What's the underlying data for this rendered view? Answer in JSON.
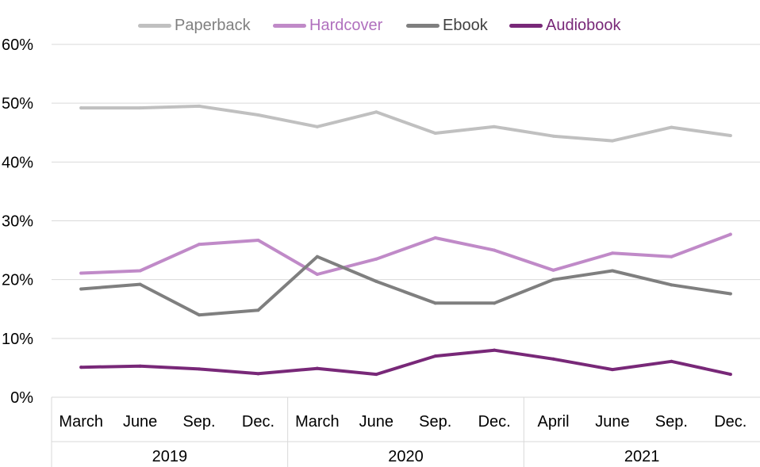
{
  "chart_data": {
    "type": "line",
    "title": "",
    "xlabel": "",
    "ylabel": "",
    "ylim": [
      0,
      0.6
    ],
    "y_ticks": [
      "0%",
      "10%",
      "20%",
      "30%",
      "40%",
      "50%",
      "60%"
    ],
    "y_tick_values": [
      0,
      0.1,
      0.2,
      0.3,
      0.4,
      0.5,
      0.6
    ],
    "grid": true,
    "legend_position": "top",
    "categories": [
      "March",
      "June",
      "Sep.",
      "Dec.",
      "March",
      "June",
      "Sep.",
      "Dec.",
      "April",
      "June",
      "Sep.",
      "Dec."
    ],
    "groups": [
      {
        "label": "2019",
        "count": 4
      },
      {
        "label": "2020",
        "count": 4
      },
      {
        "label": "2021",
        "count": 4
      }
    ],
    "series": [
      {
        "name": "Paperback",
        "color": "#c0c0c0",
        "values": [
          0.492,
          0.492,
          0.495,
          0.48,
          0.46,
          0.485,
          0.449,
          0.46,
          0.444,
          0.436,
          0.459,
          0.445
        ]
      },
      {
        "name": "Hardcover",
        "color": "#c08ac8",
        "values": [
          0.211,
          0.215,
          0.26,
          0.267,
          0.209,
          0.235,
          0.271,
          0.25,
          0.216,
          0.245,
          0.239,
          0.277
        ]
      },
      {
        "name": "Ebook",
        "color": "#7f7f7f",
        "values": [
          0.184,
          0.192,
          0.14,
          0.148,
          0.239,
          0.197,
          0.16,
          0.16,
          0.2,
          0.215,
          0.191,
          0.176
        ]
      },
      {
        "name": "Audiobook",
        "color": "#782878",
        "values": [
          0.051,
          0.053,
          0.048,
          0.04,
          0.049,
          0.039,
          0.07,
          0.08,
          0.065,
          0.047,
          0.061,
          0.039
        ]
      }
    ]
  }
}
